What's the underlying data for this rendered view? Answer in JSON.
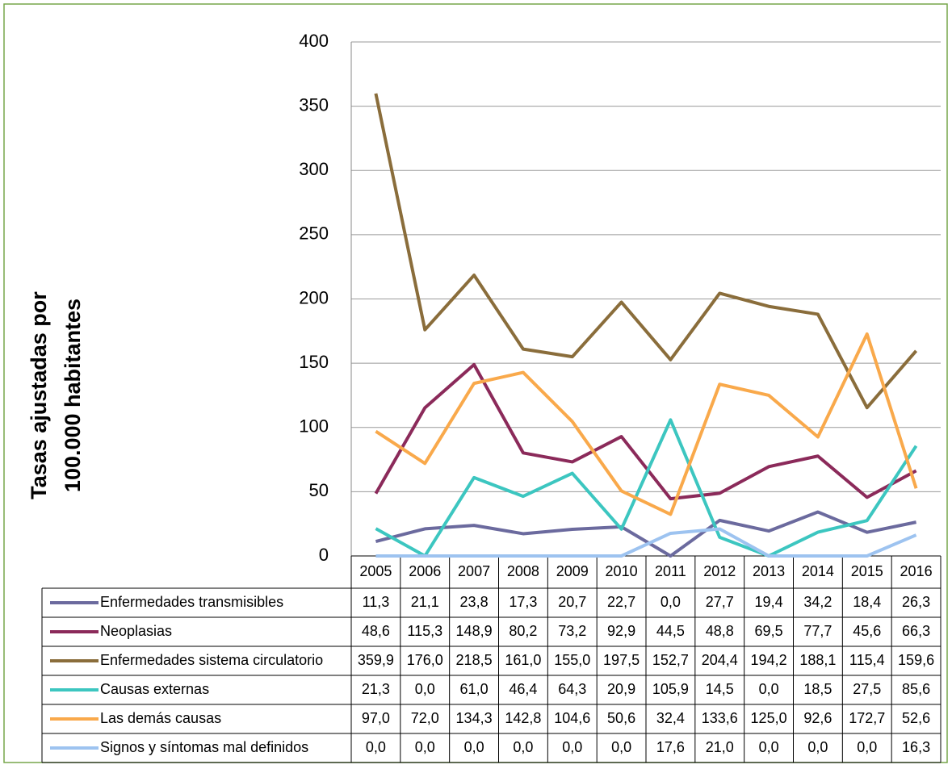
{
  "chart_data": {
    "type": "line",
    "y_label": [
      "Tasas ajustadas por",
      "100.000 habitantes"
    ],
    "categories": [
      "2005",
      "2006",
      "2007",
      "2008",
      "2009",
      "2010",
      "2011",
      "2012",
      "2013",
      "2014",
      "2015",
      "2016"
    ],
    "ylim": [
      0,
      400
    ],
    "yticks": [
      0,
      50,
      100,
      150,
      200,
      250,
      300,
      350,
      400
    ],
    "grid": true,
    "series": [
      {
        "name": "Enfermedades transmisibles",
        "color": "#6b6a9e",
        "values": [
          11.3,
          21.1,
          23.8,
          17.3,
          20.7,
          22.7,
          0.0,
          27.7,
          19.4,
          34.2,
          18.4,
          26.3
        ],
        "value_labels": [
          "11,3",
          "21,1",
          "23,8",
          "17,3",
          "20,7",
          "22,7",
          "0,0",
          "27,7",
          "19,4",
          "34,2",
          "18,4",
          "26,3"
        ]
      },
      {
        "name": "Neoplasias",
        "color": "#8b2a5a",
        "values": [
          48.6,
          115.3,
          148.9,
          80.2,
          73.2,
          92.9,
          44.5,
          48.8,
          69.5,
          77.7,
          45.6,
          66.3
        ],
        "value_labels": [
          "48,6",
          "115,3",
          "148,9",
          "80,2",
          "73,2",
          "92,9",
          "44,5",
          "48,8",
          "69,5",
          "77,7",
          "45,6",
          "66,3"
        ]
      },
      {
        "name": "Enfermedades sistema circulatorio",
        "color": "#8a6d3b",
        "values": [
          359.9,
          176.0,
          218.5,
          161.0,
          155.0,
          197.5,
          152.7,
          204.4,
          194.2,
          188.1,
          115.4,
          159.6
        ],
        "value_labels": [
          "359,9",
          "176,0",
          "218,5",
          "161,0",
          "155,0",
          "197,5",
          "152,7",
          "204,4",
          "194,2",
          "188,1",
          "115,4",
          "159,6"
        ]
      },
      {
        "name": "Causas externas",
        "color": "#3cc6c0",
        "values": [
          21.3,
          0.0,
          61.0,
          46.4,
          64.3,
          20.9,
          105.9,
          14.5,
          0.0,
          18.5,
          27.5,
          85.6
        ],
        "value_labels": [
          "21,3",
          "0,0",
          "61,0",
          "46,4",
          "64,3",
          "20,9",
          "105,9",
          "14,5",
          "0,0",
          "18,5",
          "27,5",
          "85,6"
        ]
      },
      {
        "name": "Las demás causas",
        "color": "#f9a94b",
        "values": [
          97.0,
          72.0,
          134.3,
          142.8,
          104.6,
          50.6,
          32.4,
          133.6,
          125.0,
          92.6,
          172.7,
          52.6
        ],
        "value_labels": [
          "97,0",
          "72,0",
          "134,3",
          "142,8",
          "104,6",
          "50,6",
          "32,4",
          "133,6",
          "125,0",
          "92,6",
          "172,7",
          "52,6"
        ]
      },
      {
        "name": "Signos y síntomas mal definidos",
        "color": "#9dc3f0",
        "values": [
          0.0,
          0.0,
          0.0,
          0.0,
          0.0,
          0.0,
          17.6,
          21.0,
          0.0,
          0.0,
          0.0,
          16.3
        ],
        "value_labels": [
          "0,0",
          "0,0",
          "0,0",
          "0,0",
          "0,0",
          "0,0",
          "17,6",
          "21,0",
          "0,0",
          "0,0",
          "0,0",
          "16,3"
        ]
      }
    ]
  }
}
